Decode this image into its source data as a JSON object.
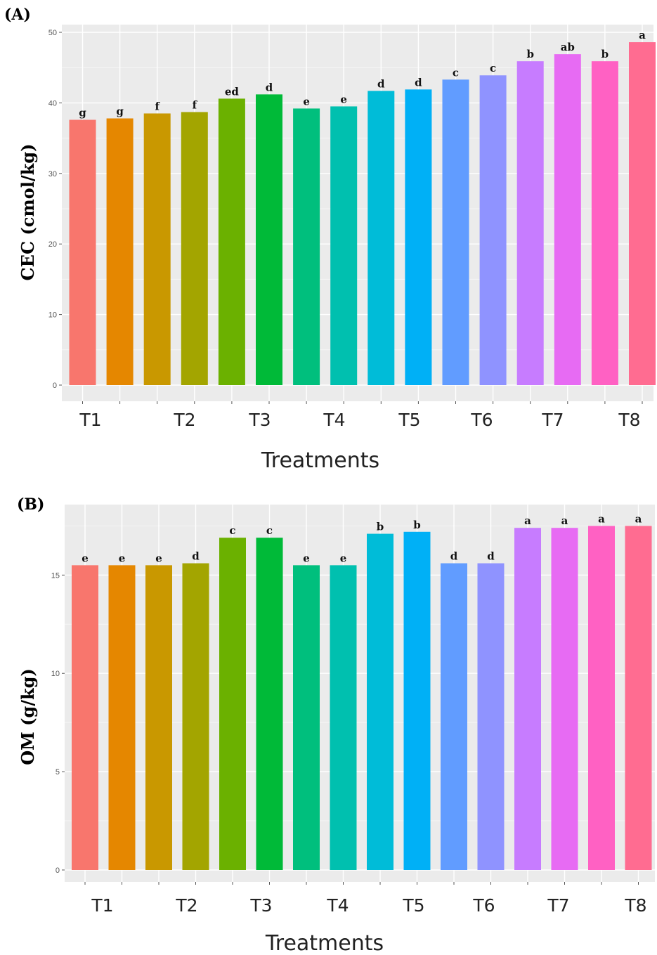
{
  "chart_data": [
    {
      "type": "bar",
      "panel_label": "(A)",
      "title": "",
      "xlabel": "Treatments",
      "ylabel": "CEC (cmol/kg)",
      "ylim": [
        0,
        50
      ],
      "yticks": [
        0,
        10,
        20,
        30,
        40,
        50
      ],
      "grid": true,
      "x_tick_labels": [
        "T1",
        "T2",
        "T3",
        "T4",
        "T5",
        "T6",
        "T7",
        "T8"
      ],
      "values": [
        37.6,
        37.8,
        38.5,
        38.7,
        40.6,
        41.2,
        39.2,
        39.5,
        41.7,
        41.9,
        43.3,
        43.9,
        45.9,
        46.9,
        45.9,
        48.6
      ],
      "letters": [
        "g",
        "g",
        "f",
        "f",
        "ed",
        "d",
        "e",
        "e",
        "d",
        "d",
        "c",
        "c",
        "b",
        "ab",
        "b",
        "a"
      ],
      "colors": [
        "#F8766D",
        "#E58700",
        "#C99800",
        "#A3A500",
        "#6BB100",
        "#00BA38",
        "#00BF7D",
        "#00C0AF",
        "#00BCD8",
        "#00B0F6",
        "#619CFF",
        "#8F93FF",
        "#C77CFF",
        "#E76BF3",
        "#FF61C3",
        "#FF6C91"
      ]
    },
    {
      "type": "bar",
      "panel_label": "(B)",
      "title": "",
      "xlabel": "Treatments",
      "ylabel": "OM (g/kg)",
      "ylim": [
        0,
        17.8
      ],
      "yticks": [
        0,
        5,
        10,
        15
      ],
      "grid": true,
      "x_tick_labels": [
        "T1",
        "T2",
        "T3",
        "T4",
        "T5",
        "T6",
        "T7",
        "T8"
      ],
      "values": [
        15.5,
        15.5,
        15.5,
        15.6,
        16.9,
        16.9,
        15.5,
        15.5,
        17.1,
        17.2,
        15.6,
        15.6,
        17.4,
        17.4,
        17.5,
        17.5
      ],
      "letters": [
        "e",
        "e",
        "e",
        "d",
        "c",
        "c",
        "e",
        "e",
        "b",
        "b",
        "d",
        "d",
        "a",
        "a",
        "a",
        "a"
      ],
      "colors": [
        "#F8766D",
        "#E58700",
        "#C99800",
        "#A3A500",
        "#6BB100",
        "#00BA38",
        "#00BF7D",
        "#00C0AF",
        "#00BCD8",
        "#00B0F6",
        "#619CFF",
        "#8F93FF",
        "#C77CFF",
        "#E76BF3",
        "#FF61C3",
        "#FF6C91"
      ]
    }
  ]
}
